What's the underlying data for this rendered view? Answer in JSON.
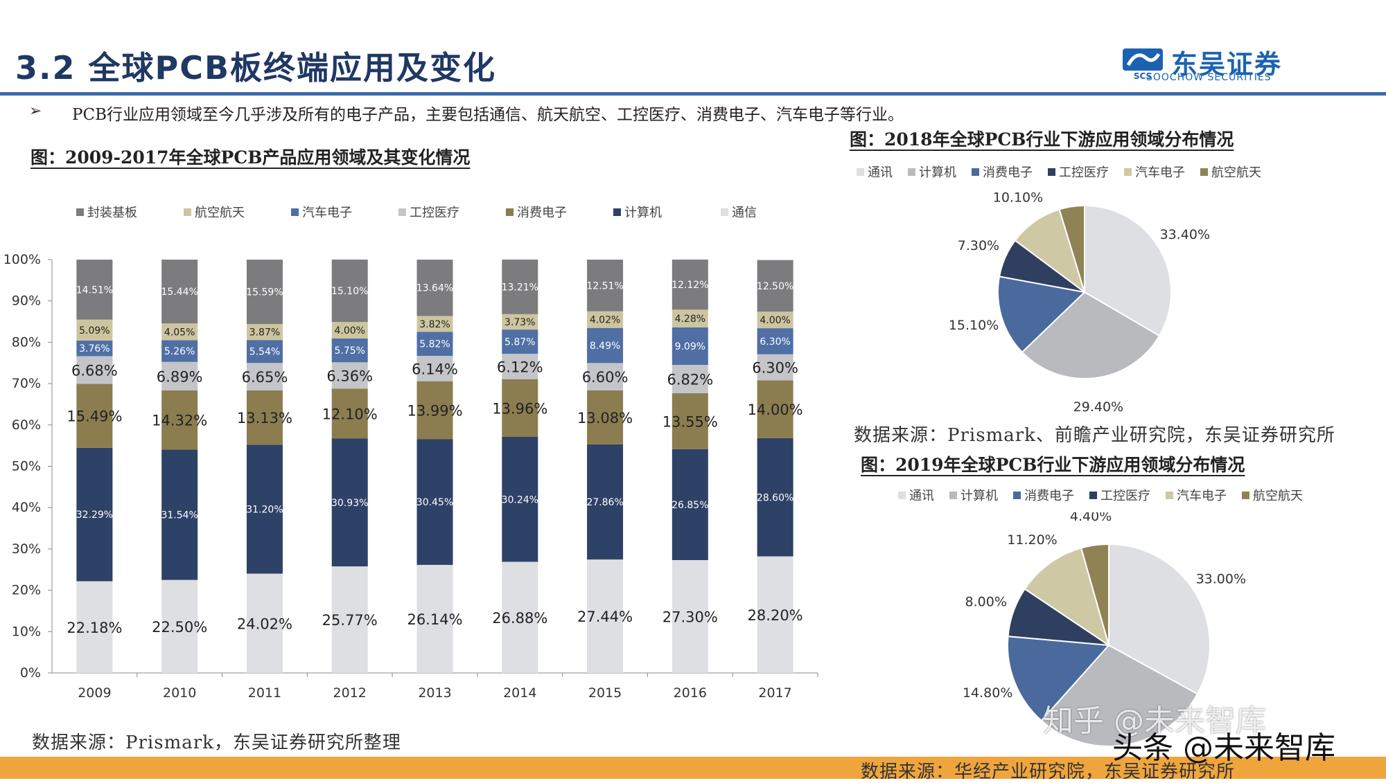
{
  "header": {
    "title": "3.2 全球PCB板终端应用及变化",
    "logo_name": "东吴证券",
    "logo_sub": "SOOCHOW SECURITIES",
    "logo_mark": "SCS",
    "rule_color": "#3a6aa8"
  },
  "bullet": {
    "mark": "➢",
    "text": "PCB行业应用领域至今几乎涉及所有的电子产品，主要包括通信、航天航空、工控医疗、消费电子、汽车电子等行业。"
  },
  "watermark": {
    "line1": "知乎 @未来智库",
    "line2": "头条 @未来智库"
  },
  "chart_data": [
    {
      "type": "bar",
      "stacked": true,
      "title": "图：2009-2017年全球PCB产品应用领域及其变化情况",
      "categories": [
        "2009",
        "2010",
        "2011",
        "2012",
        "2013",
        "2014",
        "2015",
        "2016",
        "2017"
      ],
      "ylim": [
        0,
        100
      ],
      "y_ticks": [
        "0%",
        "10%",
        "20%",
        "30%",
        "40%",
        "50%",
        "60%",
        "70%",
        "80%",
        "90%",
        "100%"
      ],
      "legend_order": [
        "封装基板",
        "航空航天",
        "汽车电子",
        "工控医疗",
        "消费电子",
        "计算机",
        "通信"
      ],
      "series": [
        {
          "name": "通信",
          "color": "#dedfe3",
          "values": [
            22.18,
            22.5,
            24.02,
            25.77,
            26.14,
            26.88,
            27.44,
            27.3,
            28.2
          ],
          "labels": [
            "22.18%",
            "22.50%",
            "24.02%",
            "25.77%",
            "26.14%",
            "26.88%",
            "27.44%",
            "27.30%",
            "28.20%"
          ]
        },
        {
          "name": "计算机",
          "color": "#2e4166",
          "values": [
            32.29,
            31.54,
            31.2,
            30.93,
            30.45,
            30.24,
            27.86,
            26.85,
            28.6
          ],
          "labels": [
            "32.29%",
            "31.54%",
            "31.20%",
            "30.93%",
            "30.45%",
            "30.24%",
            "27.86%",
            "26.85%",
            "28.60%"
          ]
        },
        {
          "name": "消费电子",
          "color": "#8b7d50",
          "values": [
            15.49,
            14.32,
            13.13,
            12.1,
            13.99,
            13.96,
            13.08,
            13.55,
            14.0
          ],
          "labels": [
            "15.49%",
            "14.32%",
            "13.13%",
            "12.10%",
            "13.99%",
            "13.96%",
            "13.08%",
            "13.55%",
            "14.00%"
          ]
        },
        {
          "name": "工控医疗",
          "color": "#c4c5c9",
          "values": [
            6.68,
            6.89,
            6.65,
            6.36,
            6.14,
            6.12,
            6.6,
            6.82,
            6.3
          ],
          "labels": [
            "6.68%",
            "6.89%",
            "6.65%",
            "6.36%",
            "6.14%",
            "6.12%",
            "6.60%",
            "6.82%",
            "6.30%"
          ]
        },
        {
          "name": "汽车电子",
          "color": "#4f6fa5",
          "values": [
            3.76,
            5.26,
            5.54,
            5.75,
            5.82,
            5.87,
            8.49,
            9.09,
            6.3
          ],
          "labels": [
            "3.76%",
            "5.26%",
            "5.54%",
            "5.75%",
            "5.82%",
            "5.87%",
            "8.49%",
            "9.09%",
            "6.30%"
          ]
        },
        {
          "name": "航空航天",
          "color": "#cdc5a0",
          "values": [
            5.09,
            4.05,
            3.87,
            4.0,
            3.82,
            3.73,
            4.02,
            4.28,
            4.0
          ],
          "labels": [
            "5.09%",
            "4.05%",
            "3.87%",
            "4.00%",
            "3.82%",
            "3.73%",
            "4.02%",
            "4.28%",
            "4.00%"
          ]
        },
        {
          "name": "封装基板",
          "color": "#7c7c7e",
          "values": [
            14.51,
            15.44,
            15.59,
            15.1,
            13.64,
            13.21,
            12.51,
            12.12,
            12.5
          ],
          "labels": [
            "14.51%",
            "15.44%",
            "15.59%",
            "15.10%",
            "13.64%",
            "13.21%",
            "12.51%",
            "12.12%",
            "12.50%"
          ]
        }
      ],
      "source": "数据来源：Prismark，东吴证券研究所整理"
    },
    {
      "type": "pie",
      "title": "图：2018年全球PCB行业下游应用领域分布情况",
      "slices": [
        {
          "name": "通讯",
          "value": 33.4,
          "label": "33.40%",
          "color": "#dedfe3"
        },
        {
          "name": "计算机",
          "value": 29.4,
          "label": "29.40%",
          "color": "#b9babe"
        },
        {
          "name": "消费电子",
          "value": 15.1,
          "label": "15.10%",
          "color": "#4a6a9e"
        },
        {
          "name": "工控医疗",
          "value": 7.3,
          "label": "7.30%",
          "color": "#2e3f60"
        },
        {
          "name": "汽车电子",
          "value": 10.1,
          "label": "10.10%",
          "color": "#cfc8a4"
        },
        {
          "name": "航空航天",
          "value": 4.7,
          "label": "4.70%",
          "color": "#8f8354"
        }
      ],
      "source": "数据来源：Prismark、前瞻产业研究院，东吴证券研究所"
    },
    {
      "type": "pie",
      "title": "图：2019年全球PCB行业下游应用领域分布情况",
      "slices": [
        {
          "name": "通讯",
          "value": 33.0,
          "label": "33.00%",
          "color": "#dedfe3"
        },
        {
          "name": "计算机",
          "value": 28.6,
          "label": "",
          "color": "#b9babe"
        },
        {
          "name": "消费电子",
          "value": 14.8,
          "label": "14.80%",
          "color": "#4a6a9e"
        },
        {
          "name": "工控医疗",
          "value": 8.0,
          "label": "8.00%",
          "color": "#2e3f60"
        },
        {
          "name": "汽车电子",
          "value": 11.2,
          "label": "11.20%",
          "color": "#cfc8a4"
        },
        {
          "name": "航空航天",
          "value": 4.4,
          "label": "4.40%",
          "color": "#8f8354"
        }
      ],
      "source": "数据来源：华经产业研究院，东吴证券研究所"
    }
  ]
}
